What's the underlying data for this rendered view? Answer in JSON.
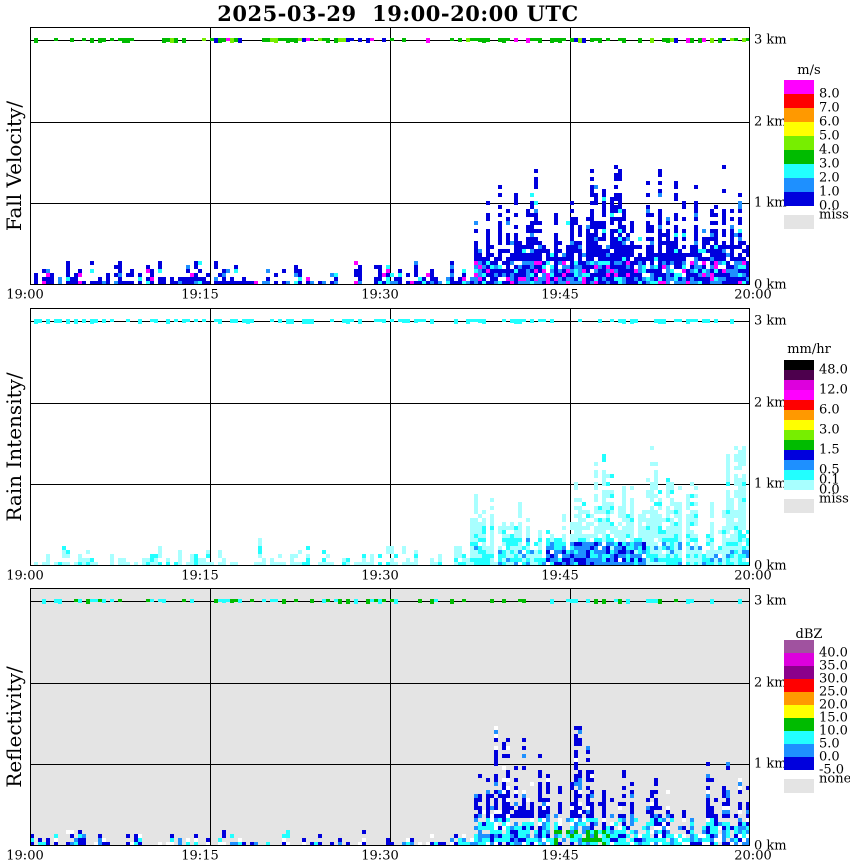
{
  "chart_data": {
    "type": "heatmap",
    "title": "2025-03-29  19:00-20:00 UTC",
    "x_ticks": [
      "19:00",
      "19:15",
      "19:30",
      "19:45",
      "20:00"
    ],
    "x_tick_minutes": [
      0,
      15,
      30,
      45,
      60
    ],
    "time_axis": {
      "start": "19:00",
      "end": "20:00",
      "gridline_minutes": [
        15,
        30,
        45
      ]
    },
    "height_axis": {
      "ticks_km": [
        3,
        2,
        1,
        0
      ],
      "labels": [
        "3 km",
        "2 km",
        "1 km",
        "0 km"
      ],
      "range_km": [
        0,
        3.16
      ]
    },
    "summary": "Vertically-pointing radar time-height sections (fall velocity, rain intensity, reflectivity). Shallow echo layer below ~0.3 km through the whole hour; precipitation cell from ~19:37 to 20:00 with tops near 1.2-1.4 km; instrument noise speckle along the 3 km range line.",
    "panels": [
      {
        "id": "fall-velocity",
        "ylabel": "Fall Velocity/",
        "bg": "#FFFFFF",
        "legend": {
          "title": "m/s",
          "cells": [
            {
              "color": "#FF00FF",
              "label": "8.0"
            },
            {
              "color": "#FF0000",
              "label": "7.0"
            },
            {
              "color": "#FF9900",
              "label": "6.0"
            },
            {
              "color": "#FFFF00",
              "label": "5.0"
            },
            {
              "color": "#77EE00",
              "label": "4.0"
            },
            {
              "color": "#00BB00",
              "label": "3.0"
            },
            {
              "color": "#22FFFF",
              "label": "2.0"
            },
            {
              "color": "#1E90FF",
              "label": "1.0"
            },
            {
              "color": "#0000DD",
              "label": "0.0"
            }
          ],
          "missing": {
            "color": "#E4E4E4",
            "label": "miss"
          }
        },
        "paint": {
          "seed": 101,
          "topline": {
            "density": 0.5,
            "colors": [
              [
                "#00BB00",
                0.62
              ],
              [
                "#77EE00",
                0.14
              ],
              [
                "#0000DD",
                0.18
              ],
              [
                "#FF00FF",
                0.06
              ]
            ]
          },
          "ground": {
            "gap": 0.22,
            "max_km": 0.3,
            "colors": [
              [
                "#0000DD",
                0.68
              ],
              [
                "#1E90FF",
                0.12
              ],
              [
                "#FF00FF",
                0.1
              ],
              [
                "#22FFFF",
                0.1
              ]
            ]
          },
          "storm": {
            "start_min": 35,
            "full_min": 39,
            "peak_km": 1.35,
            "spike": 1.6,
            "hole": 0.2,
            "low_km": 0.28,
            "low_colors": [
              [
                "#0000DD",
                0.46
              ],
              [
                "#1E90FF",
                0.3
              ],
              [
                "#FF00FF",
                0.12
              ],
              [
                "#22FFFF",
                0.12
              ]
            ],
            "main_colors": [
              [
                "#0000DD",
                0.9
              ],
              [
                "#1E90FF",
                0.07
              ],
              [
                "#22FFFF",
                0.03
              ]
            ]
          }
        }
      },
      {
        "id": "rain-intensity",
        "ylabel": "Rain Intensity/",
        "bg": "#FFFFFF",
        "legend": {
          "title": "mm/hr",
          "cells": [
            {
              "color": "#000000",
              "label": "48.0"
            },
            {
              "color": "#4D004D"
            },
            {
              "color": "#DD00DD",
              "label": "12.0"
            },
            {
              "color": "#FF00FF"
            },
            {
              "color": "#FF0000",
              "label": "6.0"
            },
            {
              "color": "#FF9900"
            },
            {
              "color": "#FFFF00",
              "label": "3.0"
            },
            {
              "color": "#77EE00"
            },
            {
              "color": "#00BB00",
              "label": "1.5"
            },
            {
              "color": "#0000DD"
            },
            {
              "color": "#1E90FF",
              "label": "0.5"
            },
            {
              "color": "#22FFFF",
              "label": "0.1"
            },
            {
              "color": "#A8FFFF",
              "label": "0.0"
            }
          ],
          "missing": {
            "color": "#E4E4E4",
            "label": "miss"
          }
        },
        "paint": {
          "seed": 202,
          "topline": {
            "density": 0.45,
            "colors": [
              [
                "#22FFFF",
                1.0
              ]
            ]
          },
          "ground": {
            "gap": 0.3,
            "max_km": 0.28,
            "colors": [
              [
                "#A8FFFF",
                0.8
              ],
              [
                "#22FFFF",
                0.2
              ]
            ]
          },
          "storm": {
            "start_min": 35,
            "full_min": 39,
            "peak_km": 1.35,
            "spike": 1.1,
            "hole": 0.15,
            "low_km": 0.3,
            "low_colors": [
              [
                "#A8FFFF",
                0.5
              ],
              [
                "#22FFFF",
                0.4
              ],
              [
                "#1E90FF",
                0.1
              ]
            ],
            "main_colors": [
              [
                "#A8FFFF",
                0.86
              ],
              [
                "#22FFFF",
                0.14
              ]
            ],
            "core": {
              "start_min": 42.5,
              "end_min": 51,
              "km": 0.28,
              "colors": [
                [
                  "#1E90FF",
                  0.4
                ],
                [
                  "#0000DD",
                  0.28
                ],
                [
                  "#22FFFF",
                  0.32
                ]
              ]
            }
          }
        }
      },
      {
        "id": "reflectivity",
        "ylabel": "Reflectivity/",
        "bg": "#E4E4E4",
        "legend": {
          "title": "dBZ",
          "cells": [
            {
              "color": "#A0529F",
              "label": "40.0"
            },
            {
              "color": "#DD00DD",
              "label": "35.0"
            },
            {
              "color": "#8B008B",
              "label": "30.0"
            },
            {
              "color": "#FF0000",
              "label": "25.0"
            },
            {
              "color": "#FF9900",
              "label": "20.0"
            },
            {
              "color": "#FFFF00",
              "label": "15.0"
            },
            {
              "color": "#00BB00",
              "label": "10.0"
            },
            {
              "color": "#22FFFF",
              "label": "5.0"
            },
            {
              "color": "#1E90FF",
              "label": "0.0"
            },
            {
              "color": "#0000DD",
              "label": "-5.0"
            }
          ],
          "missing": {
            "color": "#E4E4E4",
            "label": "none"
          }
        },
        "paint": {
          "seed": 303,
          "topline": {
            "density": 0.5,
            "colors": [
              [
                "#22FFFF",
                0.62
              ],
              [
                "#00BB00",
                0.38
              ]
            ]
          },
          "ground": {
            "gap": 0.42,
            "max_km": 0.22,
            "colors": [
              [
                "#0000DD",
                0.55
              ],
              [
                "#22FFFF",
                0.15
              ],
              [
                "#FFFFFF",
                0.2
              ],
              [
                "#1E90FF",
                0.1
              ]
            ]
          },
          "storm": {
            "start_min": 35,
            "full_min": 39,
            "peak_km": 1.3,
            "spike": 1.5,
            "hole": 0.28,
            "low_km": 0.32,
            "low_colors": [
              [
                "#22FFFF",
                0.45
              ],
              [
                "#1E90FF",
                0.2
              ],
              [
                "#0000DD",
                0.2
              ],
              [
                "#FFFFFF",
                0.15
              ]
            ],
            "main_colors": [
              [
                "#0000DD",
                0.7
              ],
              [
                "#1E90FF",
                0.12
              ],
              [
                "#FFFFFF",
                0.18
              ]
            ],
            "core": {
              "start_min": 43.5,
              "end_min": 48,
              "km": 0.16,
              "colors": [
                [
                  "#00BB00",
                  0.55
                ],
                [
                  "#22FFFF",
                  0.3
                ],
                [
                  "#1E90FF",
                  0.15
                ]
              ]
            }
          }
        }
      }
    ]
  }
}
